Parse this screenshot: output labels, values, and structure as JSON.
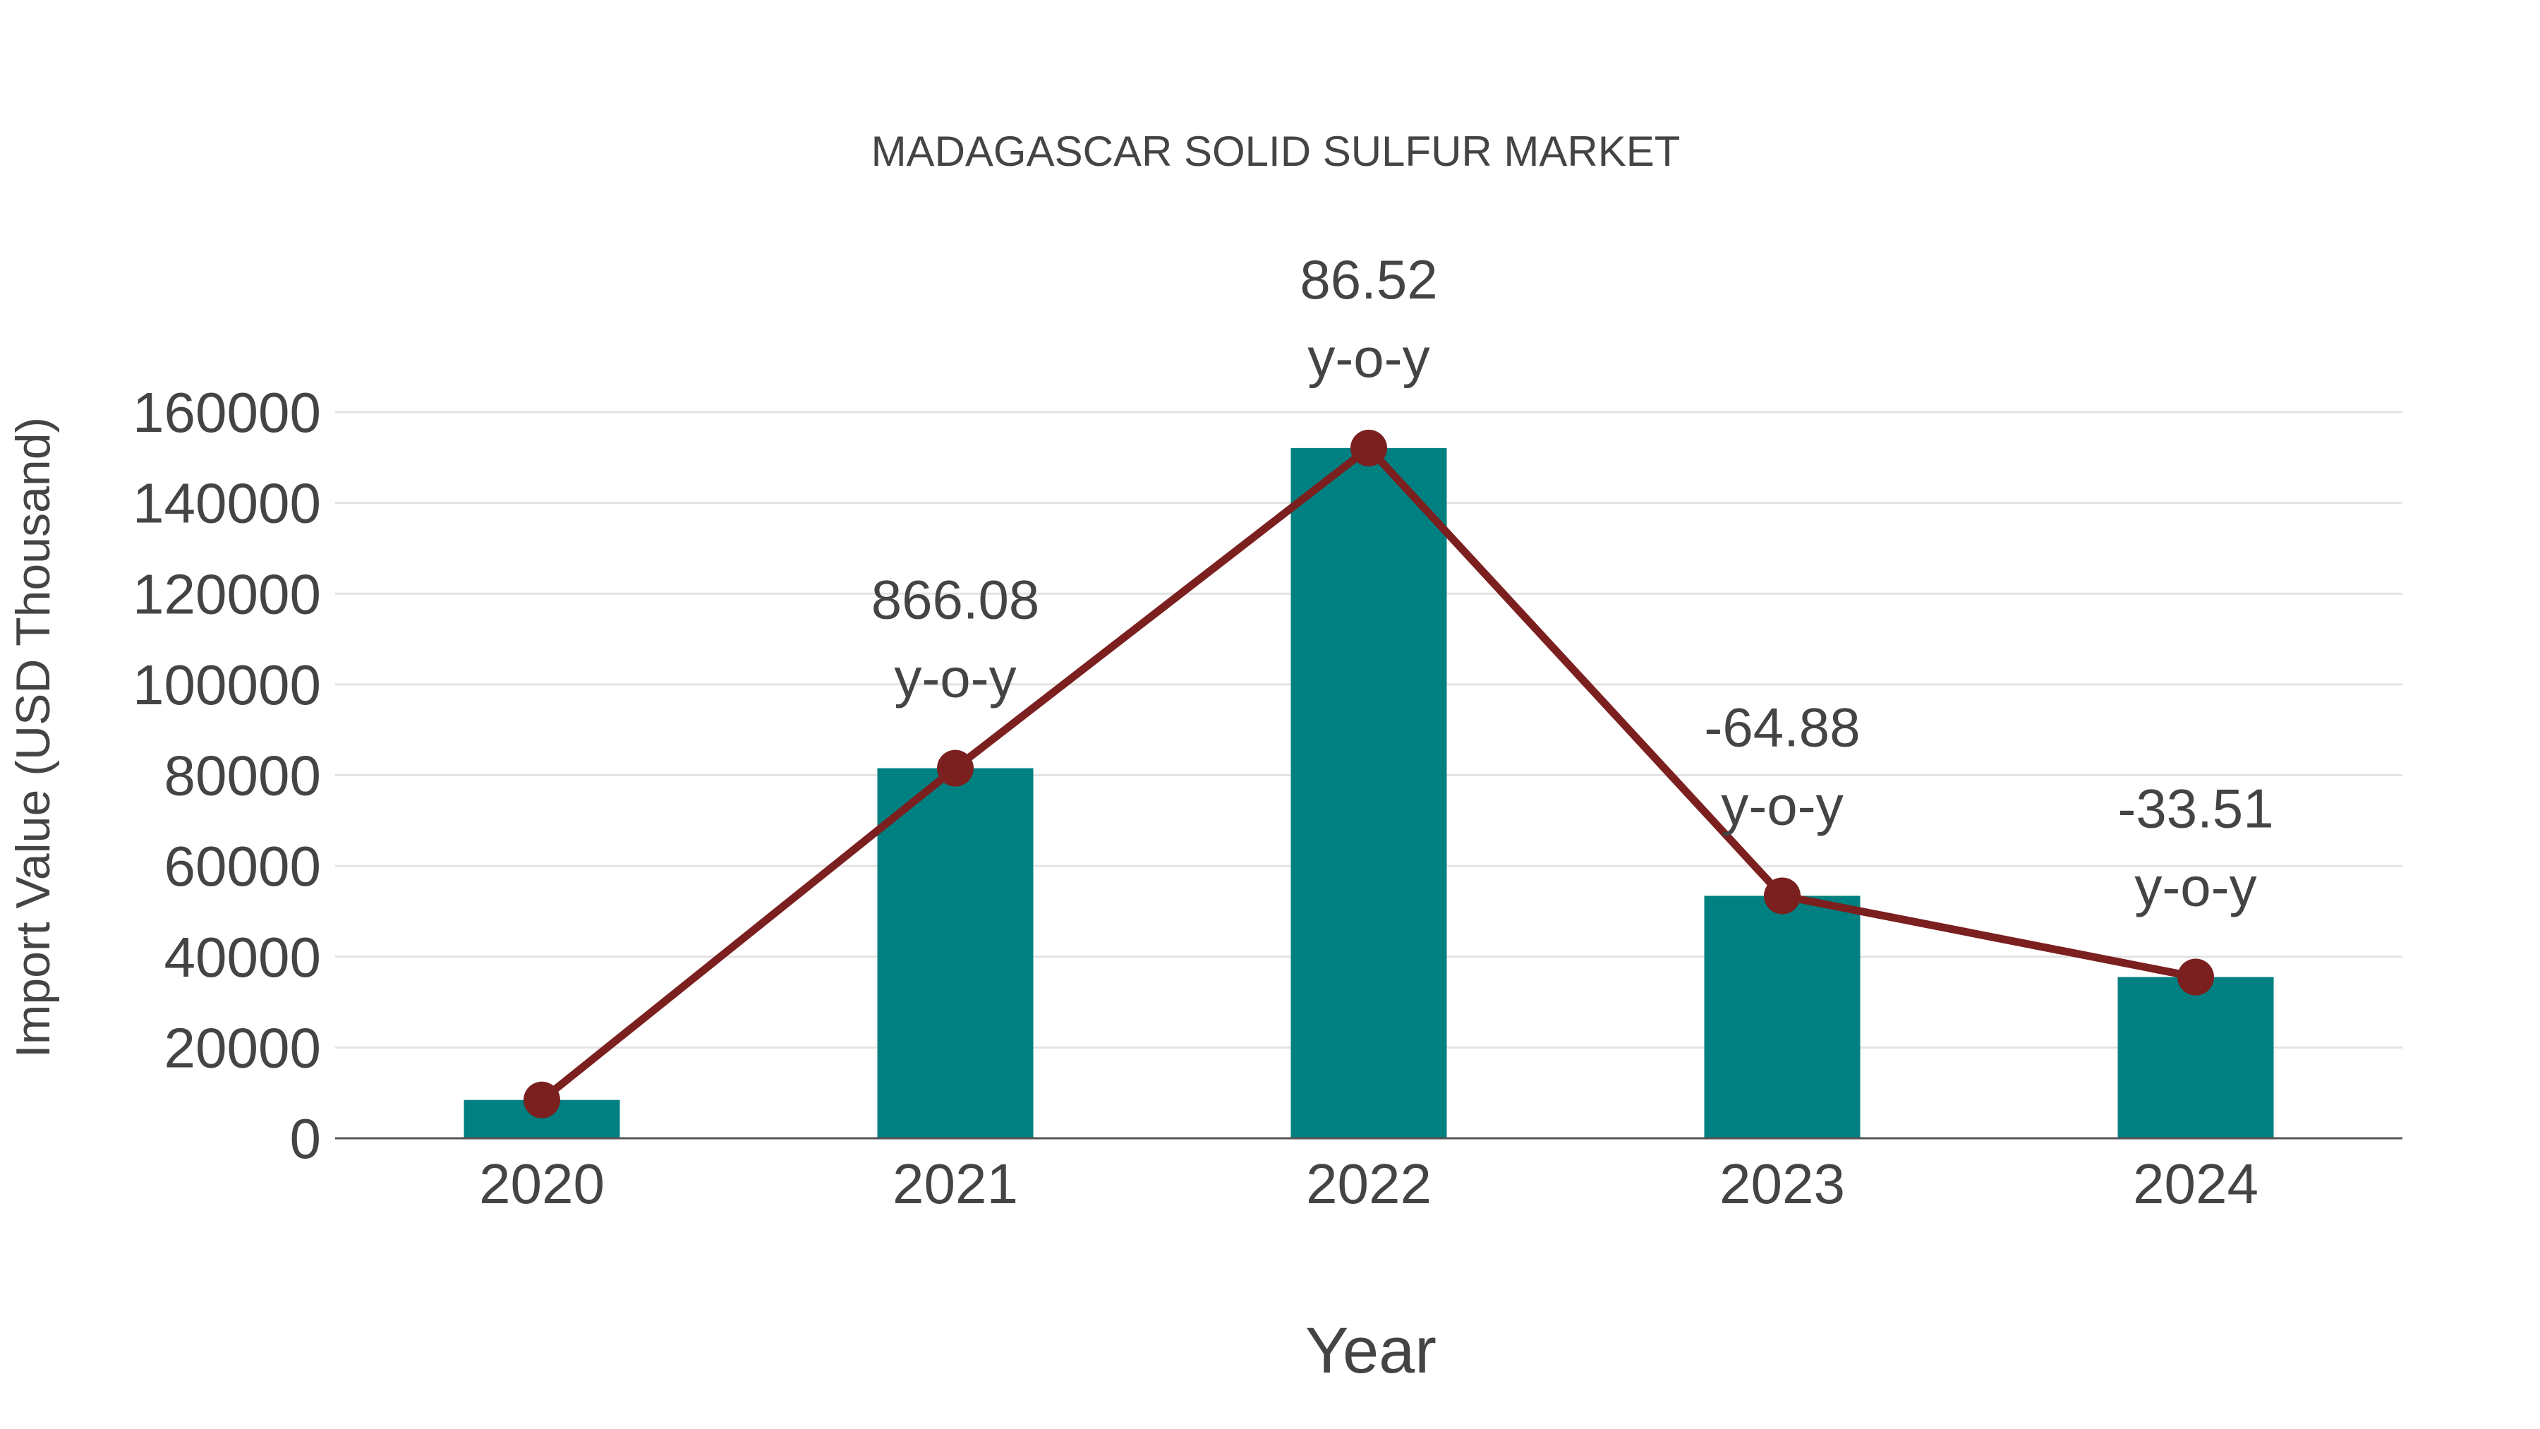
{
  "chart_data": {
    "type": "bar",
    "title": "MADAGASCAR SOLID SULFUR MARKET",
    "xlabel": "Year",
    "ylabel": "Import Value (USD Thousand)",
    "ylim": [
      0,
      160000
    ],
    "yticks": [
      0,
      20000,
      40000,
      60000,
      80000,
      100000,
      120000,
      140000,
      160000
    ],
    "ytick_labels": [
      "0",
      "20000",
      "40000",
      "60000",
      "80000",
      "100000",
      "120000",
      "140000",
      "160000"
    ],
    "grid": true,
    "categories": [
      "2020",
      "2021",
      "2022",
      "2023",
      "2024"
    ],
    "series": [
      {
        "name": "Import Value",
        "kind": "bar",
        "color": "#008080",
        "values": [
          8440,
          81540,
          152090,
          53420,
          35520
        ]
      },
      {
        "name": "Trend",
        "kind": "line",
        "color": "#7B1F1F",
        "values": [
          8440,
          81540,
          152090,
          53420,
          35520
        ]
      }
    ],
    "annotations": [
      {
        "category": "2021",
        "value": "866.08",
        "suffix": "y-o-y"
      },
      {
        "category": "2022",
        "value": "86.52",
        "suffix": "y-o-y"
      },
      {
        "category": "2023",
        "value": "-64.88",
        "suffix": "y-o-y"
      },
      {
        "category": "2024",
        "value": "-33.51",
        "suffix": "y-o-y"
      }
    ]
  }
}
